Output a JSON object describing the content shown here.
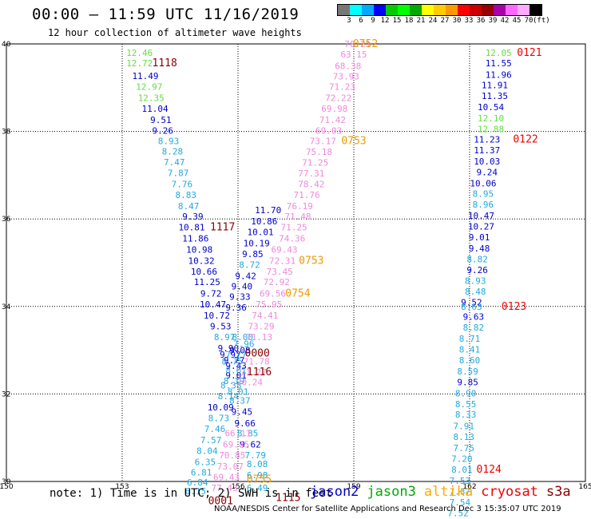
{
  "header": {
    "title": "00:00 – 11:59 UTC 11/16/2019",
    "subtitle": "12 hour collection of altimeter wave heights"
  },
  "legend": {
    "colors": [
      "#777777",
      "#00ffff",
      "#00aaff",
      "#0000ff",
      "#00cc00",
      "#00ff00",
      "#00aa00",
      "#ffff00",
      "#ffcc00",
      "#ff9900",
      "#ff0000",
      "#cc0000",
      "#990000",
      "#aa00aa",
      "#ff66ff",
      "#ffaaff",
      "#000000"
    ],
    "labels": [
      "3",
      "6",
      "9",
      "12",
      "15",
      "18",
      "21",
      "24",
      "27",
      "30",
      "33",
      "36",
      "39",
      "42",
      "45",
      "70",
      "(ft)"
    ]
  },
  "axes": {
    "x_ticks": [
      "150",
      "153",
      "156",
      "159",
      "162",
      "165"
    ],
    "y_ticks": [
      "40",
      "38",
      "36",
      "34",
      "32",
      "30"
    ]
  },
  "palette": {
    "blue": "#0000cc",
    "cyan": "#22aadd",
    "green": "#66dd44",
    "pink": "#ee88dd",
    "orange": "#ee9900",
    "darkred": "#880000",
    "red": "#ee0000"
  },
  "tracks": [
    {
      "lon": 153.45,
      "lat": 39.8,
      "text": "12.46",
      "c": "green"
    },
    {
      "lon": 153.45,
      "lat": 39.56,
      "text": "12.72",
      "c": "green"
    },
    {
      "lon": 153.6,
      "lat": 39.27,
      "text": "11.49",
      "c": "blue"
    },
    {
      "lon": 153.7,
      "lat": 39.02,
      "text": "12.97",
      "c": "green"
    },
    {
      "lon": 153.75,
      "lat": 38.77,
      "text": "12.35",
      "c": "green"
    },
    {
      "lon": 153.85,
      "lat": 38.52,
      "text": "11.04",
      "c": "blue"
    },
    {
      "lon": 154.0,
      "lat": 38.27,
      "text": "9.51",
      "c": "blue"
    },
    {
      "lon": 154.05,
      "lat": 38.02,
      "text": "9.26",
      "c": "blue"
    },
    {
      "lon": 154.2,
      "lat": 37.78,
      "text": "8.93",
      "c": "cyan"
    },
    {
      "lon": 154.3,
      "lat": 37.55,
      "text": "8.28",
      "c": "cyan"
    },
    {
      "lon": 154.35,
      "lat": 37.3,
      "text": "7.47",
      "c": "cyan"
    },
    {
      "lon": 154.45,
      "lat": 37.05,
      "text": "7.87",
      "c": "cyan"
    },
    {
      "lon": 154.55,
      "lat": 36.8,
      "text": "7.76",
      "c": "cyan"
    },
    {
      "lon": 154.65,
      "lat": 36.55,
      "text": "8.83",
      "c": "cyan"
    },
    {
      "lon": 154.72,
      "lat": 36.3,
      "text": "8.47",
      "c": "cyan"
    },
    {
      "lon": 154.83,
      "lat": 36.06,
      "text": "9.39",
      "c": "blue"
    },
    {
      "lon": 154.8,
      "lat": 35.81,
      "text": "10.81",
      "c": "blue"
    },
    {
      "lon": 154.9,
      "lat": 35.56,
      "text": "11.86",
      "c": "blue"
    },
    {
      "lon": 155.0,
      "lat": 35.3,
      "text": "10.98",
      "c": "blue"
    },
    {
      "lon": 155.05,
      "lat": 35.05,
      "text": "10.32",
      "c": "blue"
    },
    {
      "lon": 155.12,
      "lat": 34.8,
      "text": "10.66",
      "c": "blue"
    },
    {
      "lon": 155.2,
      "lat": 34.56,
      "text": "11.25",
      "c": "blue"
    },
    {
      "lon": 155.3,
      "lat": 34.3,
      "text": "9.72",
      "c": "blue"
    },
    {
      "lon": 155.35,
      "lat": 34.05,
      "text": "10.47",
      "c": "blue"
    },
    {
      "lon": 155.45,
      "lat": 33.8,
      "text": "10.72",
      "c": "blue"
    },
    {
      "lon": 155.55,
      "lat": 33.55,
      "text": "9.53",
      "c": "blue"
    },
    {
      "lon": 155.65,
      "lat": 33.3,
      "text": "8.97",
      "c": "cyan"
    },
    {
      "lon": 155.75,
      "lat": 33.05,
      "text": "9.90",
      "c": "blue"
    },
    {
      "lon": 155.8,
      "lat": 32.9,
      "text": "9.97",
      "c": "blue"
    },
    {
      "lon": 155.9,
      "lat": 32.77,
      "text": "9.77",
      "c": "blue"
    },
    {
      "lon": 155.95,
      "lat": 32.65,
      "text": "9.43",
      "c": "blue"
    },
    {
      "lon": 155.95,
      "lat": 32.43,
      "text": "9.01",
      "c": "blue"
    },
    {
      "lon": 155.82,
      "lat": 32.2,
      "text": "8.38",
      "c": "cyan"
    },
    {
      "lon": 155.75,
      "lat": 31.95,
      "text": "8.14",
      "c": "cyan"
    },
    {
      "lon": 155.55,
      "lat": 31.7,
      "text": "10.09",
      "c": "blue"
    },
    {
      "lon": 155.5,
      "lat": 31.45,
      "text": "8.73",
      "c": "cyan"
    },
    {
      "lon": 155.4,
      "lat": 31.2,
      "text": "7.46",
      "c": "cyan"
    },
    {
      "lon": 155.3,
      "lat": 30.95,
      "text": "7.57",
      "c": "cyan"
    },
    {
      "lon": 155.2,
      "lat": 30.7,
      "text": "8.04",
      "c": "cyan"
    },
    {
      "lon": 155.15,
      "lat": 30.45,
      "text": "6.35",
      "c": "cyan"
    },
    {
      "lon": 155.05,
      "lat": 30.21,
      "text": "6.81",
      "c": "cyan"
    },
    {
      "lon": 154.95,
      "lat": 29.98,
      "text": "6.84",
      "c": "cyan"
    },
    {
      "lon": 154.9,
      "lat": 29.78,
      "text": "6.15",
      "c": "cyan"
    },
    {
      "lon": 156.12,
      "lat": 33.3,
      "text": "8.00",
      "c": "cyan"
    },
    {
      "lon": 156.15,
      "lat": 33.15,
      "text": "7.96",
      "c": "cyan"
    },
    {
      "lon": 156.05,
      "lat": 33.0,
      "text": "9.08",
      "c": "blue"
    },
    {
      "lon": 155.95,
      "lat": 32.9,
      "text": "7.77",
      "c": "cyan"
    },
    {
      "lon": 155.85,
      "lat": 32.75,
      "text": "8.75",
      "c": "cyan"
    },
    {
      "lon": 155.95,
      "lat": 32.55,
      "text": "8.61",
      "c": "cyan"
    },
    {
      "lon": 155.9,
      "lat": 32.3,
      "text": "8.19",
      "c": "cyan"
    },
    {
      "lon": 156.0,
      "lat": 32.05,
      "text": "8.01",
      "c": "cyan"
    },
    {
      "lon": 156.05,
      "lat": 31.85,
      "text": "8.37",
      "c": "cyan"
    },
    {
      "lon": 156.1,
      "lat": 31.6,
      "text": "9.45",
      "c": "blue"
    },
    {
      "lon": 156.18,
      "lat": 31.33,
      "text": "9.66",
      "c": "blue"
    },
    {
      "lon": 156.25,
      "lat": 31.1,
      "text": "8.85",
      "c": "cyan"
    },
    {
      "lon": 156.32,
      "lat": 30.85,
      "text": "9.62",
      "c": "blue"
    },
    {
      "lon": 156.45,
      "lat": 30.6,
      "text": "7.79",
      "c": "cyan"
    },
    {
      "lon": 156.5,
      "lat": 30.4,
      "text": "8.08",
      "c": "cyan"
    },
    {
      "lon": 156.5,
      "lat": 30.15,
      "text": "6.98",
      "c": "cyan"
    },
    {
      "lon": 156.5,
      "lat": 29.85,
      "text": "6.49",
      "c": "cyan"
    },
    {
      "lon": 156.78,
      "lat": 36.2,
      "text": "11.70",
      "c": "blue"
    },
    {
      "lon": 156.68,
      "lat": 35.95,
      "text": "10.86",
      "c": "blue"
    },
    {
      "lon": 156.58,
      "lat": 35.7,
      "text": "10.01",
      "c": "blue"
    },
    {
      "lon": 156.48,
      "lat": 35.45,
      "text": "10.19",
      "c": "blue"
    },
    {
      "lon": 156.38,
      "lat": 35.2,
      "text": "9.85",
      "c": "blue"
    },
    {
      "lon": 156.3,
      "lat": 34.95,
      "text": "8.72",
      "c": "cyan"
    },
    {
      "lon": 156.2,
      "lat": 34.7,
      "text": "9.42",
      "c": "blue"
    },
    {
      "lon": 156.1,
      "lat": 34.46,
      "text": "9.40",
      "c": "blue"
    },
    {
      "lon": 156.05,
      "lat": 34.22,
      "text": "9.33",
      "c": "blue"
    },
    {
      "lon": 155.95,
      "lat": 33.98,
      "text": "9.36",
      "c": "blue"
    },
    {
      "lon": 159.1,
      "lat": 40.0,
      "text": "70.21",
      "c": "pink"
    },
    {
      "lon": 159.0,
      "lat": 39.76,
      "text": "63.15",
      "c": "pink"
    },
    {
      "lon": 158.85,
      "lat": 39.5,
      "text": "68.38",
      "c": "pink"
    },
    {
      "lon": 158.8,
      "lat": 39.26,
      "text": "73.93",
      "c": "pink"
    },
    {
      "lon": 158.7,
      "lat": 39.02,
      "text": "71.23",
      "c": "pink"
    },
    {
      "lon": 158.6,
      "lat": 38.77,
      "text": "72.22",
      "c": "pink"
    },
    {
      "lon": 158.5,
      "lat": 38.52,
      "text": "69.98",
      "c": "pink"
    },
    {
      "lon": 158.45,
      "lat": 38.27,
      "text": "71.42",
      "c": "pink"
    },
    {
      "lon": 158.35,
      "lat": 38.02,
      "text": "69.03",
      "c": "pink"
    },
    {
      "lon": 158.2,
      "lat": 37.78,
      "text": "73.17",
      "c": "pink"
    },
    {
      "lon": 158.1,
      "lat": 37.54,
      "text": "75.18",
      "c": "pink"
    },
    {
      "lon": 158.0,
      "lat": 37.29,
      "text": "71.25",
      "c": "pink"
    },
    {
      "lon": 157.9,
      "lat": 37.04,
      "text": "77.31",
      "c": "pink"
    },
    {
      "lon": 157.9,
      "lat": 36.8,
      "text": "78.42",
      "c": "pink"
    },
    {
      "lon": 157.78,
      "lat": 36.55,
      "text": "71.76",
      "c": "pink"
    },
    {
      "lon": 157.6,
      "lat": 36.3,
      "text": "76.19",
      "c": "pink"
    },
    {
      "lon": 157.55,
      "lat": 36.06,
      "text": "71.48",
      "c": "pink"
    },
    {
      "lon": 157.45,
      "lat": 35.81,
      "text": "71.25",
      "c": "pink"
    },
    {
      "lon": 157.4,
      "lat": 35.56,
      "text": "74.36",
      "c": "pink"
    },
    {
      "lon": 157.2,
      "lat": 35.3,
      "text": "69.43",
      "c": "pink"
    },
    {
      "lon": 157.15,
      "lat": 35.05,
      "text": "72.31",
      "c": "pink"
    },
    {
      "lon": 157.08,
      "lat": 34.8,
      "text": "73.45",
      "c": "pink"
    },
    {
      "lon": 157.0,
      "lat": 34.56,
      "text": "72.92",
      "c": "pink"
    },
    {
      "lon": 156.9,
      "lat": 34.3,
      "text": "69.56",
      "c": "pink"
    },
    {
      "lon": 156.8,
      "lat": 34.05,
      "text": "75.95",
      "c": "pink"
    },
    {
      "lon": 156.7,
      "lat": 33.8,
      "text": "74.41",
      "c": "pink"
    },
    {
      "lon": 156.6,
      "lat": 33.55,
      "text": "73.29",
      "c": "pink"
    },
    {
      "lon": 156.55,
      "lat": 33.3,
      "text": "71.13",
      "c": "pink"
    },
    {
      "lon": 156.48,
      "lat": 32.75,
      "text": "71.78",
      "c": "pink"
    },
    {
      "lon": 156.4,
      "lat": 32.5,
      "text": "71.27",
      "c": "pink"
    },
    {
      "lon": 156.3,
      "lat": 32.27,
      "text": "70.24",
      "c": "pink"
    },
    {
      "lon": 156.0,
      "lat": 31.1,
      "text": "66.11",
      "c": "pink"
    },
    {
      "lon": 155.95,
      "lat": 30.85,
      "text": "69.85",
      "c": "pink"
    },
    {
      "lon": 155.85,
      "lat": 30.6,
      "text": "70.85",
      "c": "pink"
    },
    {
      "lon": 155.8,
      "lat": 30.35,
      "text": "73.07",
      "c": "pink"
    },
    {
      "lon": 155.7,
      "lat": 30.1,
      "text": "69.43",
      "c": "pink"
    },
    {
      "lon": 155.65,
      "lat": 29.85,
      "text": "77.43",
      "c": "pink"
    },
    {
      "lon": 162.75,
      "lat": 39.8,
      "text": "12.05",
      "c": "green"
    },
    {
      "lon": 162.75,
      "lat": 39.56,
      "text": "11.55",
      "c": "blue"
    },
    {
      "lon": 162.75,
      "lat": 39.3,
      "text": "11.96",
      "c": "blue"
    },
    {
      "lon": 162.65,
      "lat": 39.06,
      "text": "11.91",
      "c": "blue"
    },
    {
      "lon": 162.65,
      "lat": 38.81,
      "text": "11.35",
      "c": "blue"
    },
    {
      "lon": 162.55,
      "lat": 38.56,
      "text": "10.54",
      "c": "blue"
    },
    {
      "lon": 162.55,
      "lat": 38.3,
      "text": "12.10",
      "c": "green"
    },
    {
      "lon": 162.55,
      "lat": 38.06,
      "text": "12.88",
      "c": "green"
    },
    {
      "lon": 162.45,
      "lat": 37.82,
      "text": "11.23",
      "c": "blue"
    },
    {
      "lon": 162.45,
      "lat": 37.57,
      "text": "11.37",
      "c": "blue"
    },
    {
      "lon": 162.45,
      "lat": 37.32,
      "text": "10.03",
      "c": "blue"
    },
    {
      "lon": 162.45,
      "lat": 37.07,
      "text": "9.24",
      "c": "blue"
    },
    {
      "lon": 162.35,
      "lat": 36.82,
      "text": "10.06",
      "c": "blue"
    },
    {
      "lon": 162.35,
      "lat": 36.58,
      "text": "8.95",
      "c": "cyan"
    },
    {
      "lon": 162.35,
      "lat": 36.33,
      "text": "8.96",
      "c": "cyan"
    },
    {
      "lon": 162.3,
      "lat": 36.08,
      "text": "10.47",
      "c": "blue"
    },
    {
      "lon": 162.3,
      "lat": 35.83,
      "text": "10.27",
      "c": "blue"
    },
    {
      "lon": 162.25,
      "lat": 35.58,
      "text": "9.01",
      "c": "blue"
    },
    {
      "lon": 162.25,
      "lat": 35.33,
      "text": "9.48",
      "c": "blue"
    },
    {
      "lon": 162.2,
      "lat": 35.08,
      "text": "8.82",
      "c": "cyan"
    },
    {
      "lon": 162.2,
      "lat": 34.84,
      "text": "9.26",
      "c": "blue"
    },
    {
      "lon": 162.15,
      "lat": 34.59,
      "text": "8.93",
      "c": "cyan"
    },
    {
      "lon": 162.15,
      "lat": 34.34,
      "text": "8.48",
      "c": "cyan"
    },
    {
      "lon": 162.05,
      "lat": 34.1,
      "text": "9.52",
      "c": "blue"
    },
    {
      "lon": 162.05,
      "lat": 34.0,
      "text": "8.63",
      "c": "cyan"
    },
    {
      "lon": 162.1,
      "lat": 33.77,
      "text": "9.63",
      "c": "blue"
    },
    {
      "lon": 162.1,
      "lat": 33.52,
      "text": "8.82",
      "c": "cyan"
    },
    {
      "lon": 162.0,
      "lat": 33.27,
      "text": "8.71",
      "c": "cyan"
    },
    {
      "lon": 162.0,
      "lat": 33.02,
      "text": "8.41",
      "c": "cyan"
    },
    {
      "lon": 162.0,
      "lat": 32.77,
      "text": "8.60",
      "c": "cyan"
    },
    {
      "lon": 161.95,
      "lat": 32.52,
      "text": "8.59",
      "c": "cyan"
    },
    {
      "lon": 161.95,
      "lat": 32.27,
      "text": "9.85",
      "c": "blue"
    },
    {
      "lon": 161.9,
      "lat": 32.02,
      "text": "8.90",
      "c": "cyan"
    },
    {
      "lon": 161.9,
      "lat": 31.77,
      "text": "8.55",
      "c": "cyan"
    },
    {
      "lon": 161.9,
      "lat": 31.53,
      "text": "8.33",
      "c": "cyan"
    },
    {
      "lon": 161.85,
      "lat": 31.27,
      "text": "7.91",
      "c": "cyan"
    },
    {
      "lon": 161.85,
      "lat": 31.02,
      "text": "8.13",
      "c": "cyan"
    },
    {
      "lon": 161.85,
      "lat": 30.77,
      "text": "7.75",
      "c": "cyan"
    },
    {
      "lon": 161.8,
      "lat": 30.52,
      "text": "7.20",
      "c": "cyan"
    },
    {
      "lon": 161.8,
      "lat": 30.27,
      "text": "8.01",
      "c": "cyan"
    },
    {
      "lon": 161.75,
      "lat": 30.02,
      "text": "7.53",
      "c": "cyan"
    },
    {
      "lon": 161.75,
      "lat": 29.77,
      "text": "7.37",
      "c": "cyan"
    },
    {
      "lon": 161.75,
      "lat": 29.53,
      "text": "7.54",
      "c": "cyan"
    },
    {
      "lon": 161.7,
      "lat": 29.28,
      "text": "7.52",
      "c": "cyan"
    }
  ],
  "time_labels": [
    {
      "lon": 159.3,
      "lat": 40.0,
      "text": "0752",
      "c": "orange"
    },
    {
      "lon": 154.1,
      "lat": 39.56,
      "text": "1118",
      "c": "darkred"
    },
    {
      "lon": 163.55,
      "lat": 39.8,
      "text": "0121",
      "c": "red"
    },
    {
      "lon": 163.45,
      "lat": 37.82,
      "text": "0122",
      "c": "red"
    },
    {
      "lon": 159.0,
      "lat": 37.78,
      "text": "0753",
      "c": "orange"
    },
    {
      "lon": 155.6,
      "lat": 35.81,
      "text": "1117",
      "c": "darkred"
    },
    {
      "lon": 157.9,
      "lat": 35.05,
      "text": "0753",
      "c": "orange"
    },
    {
      "lon": 163.15,
      "lat": 34.0,
      "text": "0123",
      "c": "red"
    },
    {
      "lon": 157.55,
      "lat": 34.3,
      "text": "0754",
      "c": "orange"
    },
    {
      "lon": 156.5,
      "lat": 32.93,
      "text": "0000",
      "c": "darkred"
    },
    {
      "lon": 156.55,
      "lat": 32.5,
      "text": "1116",
      "c": "darkred"
    },
    {
      "lon": 162.5,
      "lat": 30.27,
      "text": "0124",
      "c": "red"
    },
    {
      "lon": 156.55,
      "lat": 30.05,
      "text": "0755",
      "c": "orange"
    },
    {
      "lon": 157.3,
      "lat": 29.63,
      "text": "1115",
      "c": "darkred"
    },
    {
      "lon": 155.55,
      "lat": 29.55,
      "text": "0001",
      "c": "darkred"
    }
  ],
  "footer": {
    "note": "note: 1) Time is in UTC; 2) SWH is in feet",
    "satellites": [
      {
        "name": "jason2",
        "color": "#0000cc"
      },
      {
        "name": "jason3",
        "color": "#00aa00"
      },
      {
        "name": "altika",
        "color": "#ffaa00"
      },
      {
        "name": "cryosat",
        "color": "#ee0000"
      },
      {
        "name": "s3a",
        "color": "#880000"
      }
    ],
    "credit": "NOAA/NESDIS Center for Satellite Applications and Research   Dec  3 15:35:07 UTC 2019"
  }
}
